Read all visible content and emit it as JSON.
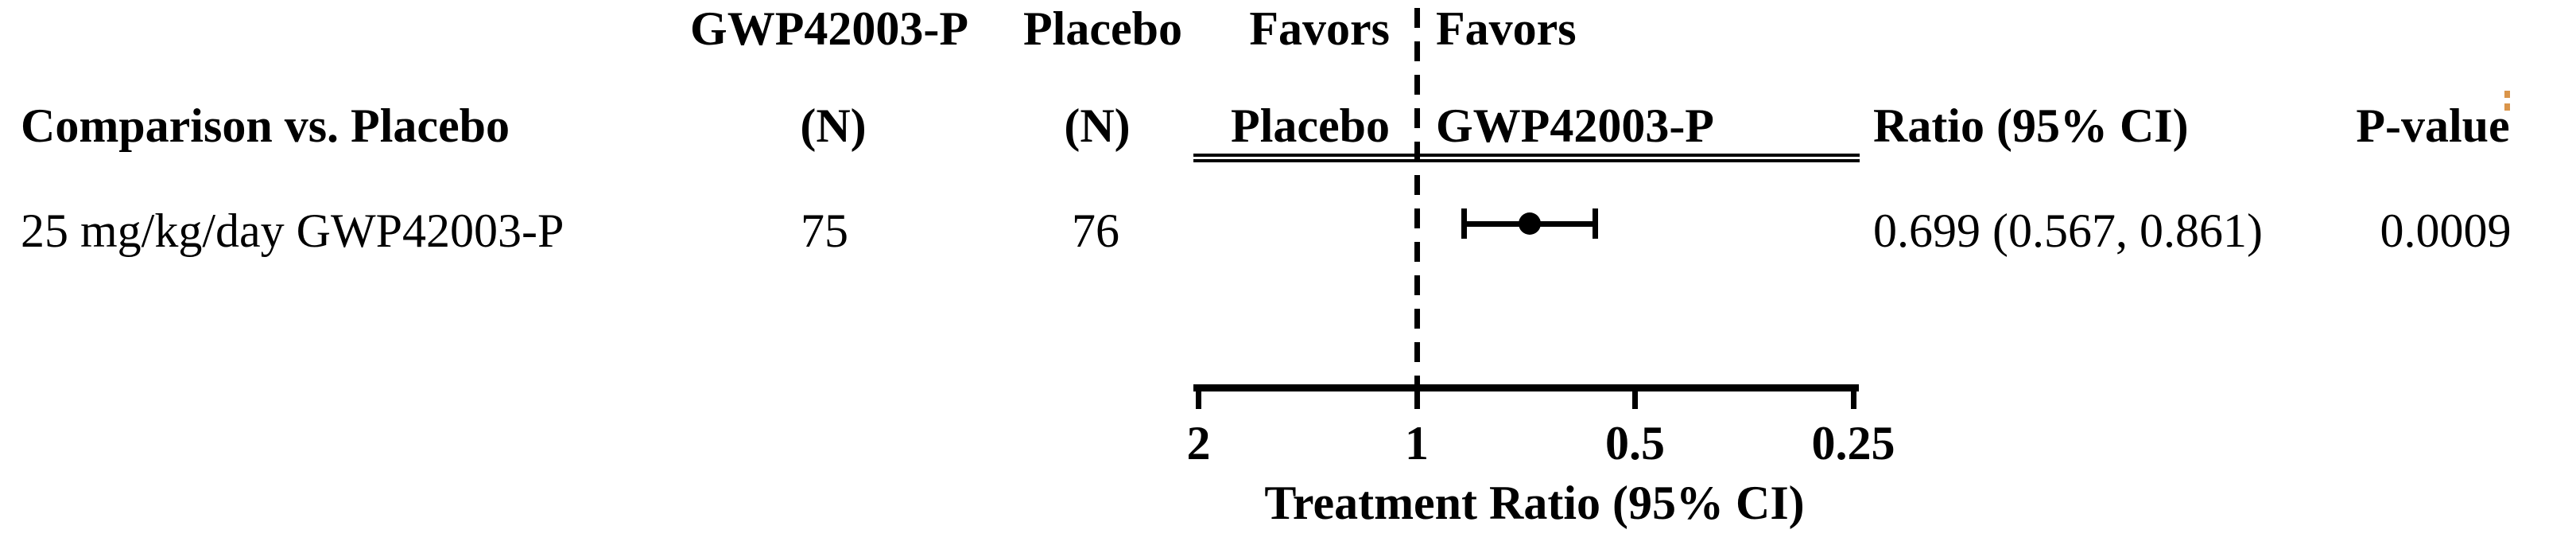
{
  "colors": {
    "text": "#000000",
    "background": "#ffffff",
    "footnote_mark": "#d4822a"
  },
  "icons": {
    "pvalue_footnote_mark": "orange-double-dot-superscript"
  },
  "header_top": {
    "gwp_col": "GWP42003-P",
    "placebo_col": "Placebo",
    "favors_left": "Favors",
    "favors_right": "Favors"
  },
  "header": {
    "comparison": "Comparison vs. Placebo",
    "n_gwp": "(N)",
    "n_placebo": "(N)",
    "favors_placebo": "Placebo",
    "favors_gwp": "GWP42003-P",
    "ratio_ci": "Ratio (95% CI)",
    "p_value": "P-value"
  },
  "row": {
    "comparison": "25 mg/kg/day GWP42003-P",
    "n_gwp": "75",
    "n_placebo": "76",
    "ratio_ci": "0.699 (0.567, 0.861)",
    "p_value": "0.0009"
  },
  "chart_data": {
    "type": "forest",
    "title": "",
    "xlabel": "Treatment Ratio (95% CI)",
    "x_scale": "log2-reversed",
    "x_range": [
      2,
      0.25
    ],
    "x_ticks": [
      2,
      1,
      0.5,
      0.25
    ],
    "x_tick_labels": [
      "2",
      "1",
      "0.5",
      "0.25"
    ],
    "reference_line": 1,
    "grid": false,
    "favors": {
      "left_of_reference": "Favors Placebo",
      "right_of_reference": "Favors GWP42003-P"
    },
    "series": [
      {
        "comparison": "25 mg/kg/day GWP42003-P",
        "n_gwp42003p": 75,
        "n_placebo": 76,
        "treatment_ratio": 0.699,
        "ci95_lower": 0.567,
        "ci95_upper": 0.861,
        "p_value": 0.0009
      }
    ]
  }
}
